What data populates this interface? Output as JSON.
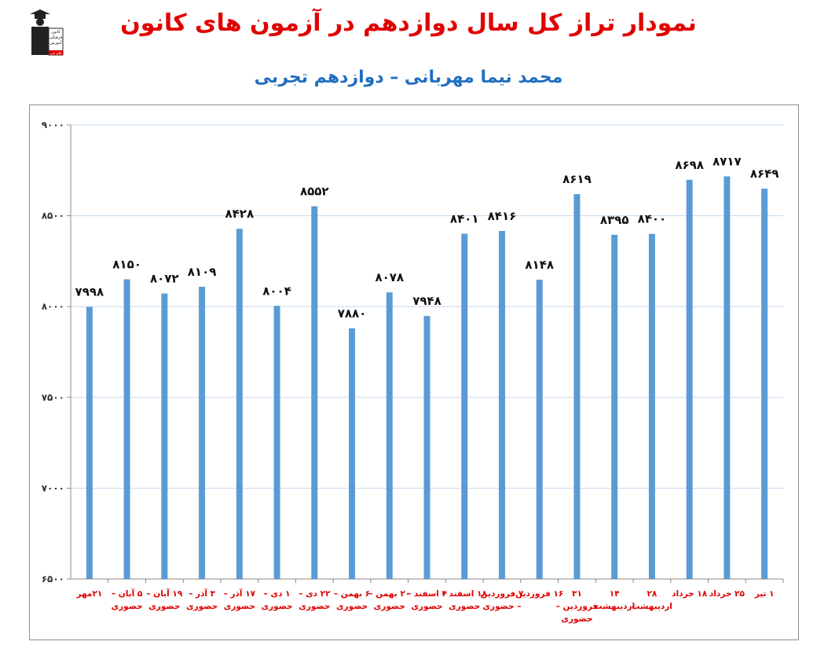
{
  "header": {
    "title": "نمودار تراز کل سال دوازدهم در آزمون های کانون",
    "subtitle": "محمد نیما مهربانی – دوازدهم تجربی",
    "logo_text": [
      "کانون",
      "فرهنگی",
      "آموزش",
      "قلم چی"
    ]
  },
  "colors": {
    "bar": "#5b9bd5",
    "grid": "#c5d9ef",
    "title": "#e00000",
    "subtitle": "#1f6fc0",
    "category_text": "#e00000"
  },
  "chart_data": {
    "type": "bar",
    "title": "نمودار تراز کل سال دوازدهم در آزمون های کانون",
    "subtitle": "محمد نیما مهربانی – دوازدهم تجربی",
    "xlabel": "",
    "ylabel": "",
    "ylim": [
      6500,
      9000
    ],
    "yticks": [
      6500,
      7000,
      7500,
      8000,
      8500,
      9000
    ],
    "ytick_labels": [
      "۶۵۰۰",
      "۷۰۰۰",
      "۷۵۰۰",
      "۸۰۰۰",
      "۸۵۰۰",
      "۹۰۰۰"
    ],
    "grid": true,
    "legend": "none",
    "categories": [
      [
        "۲۱مهر"
      ],
      [
        "۵ آبان –",
        "حضوری"
      ],
      [
        "۱۹ آبان –",
        "حضوری"
      ],
      [
        "۳ آذر –",
        "حضوری"
      ],
      [
        "۱۷ آذر –",
        "حضوری"
      ],
      [
        "۱ دی –",
        "حضوری"
      ],
      [
        "۲۲ دی –",
        "حضوری"
      ],
      [
        "۶ بهمن –",
        "حضوری"
      ],
      [
        "۲۰ بهمن –",
        "حضوری"
      ],
      [
        "۴ اسفند –",
        "حضوری"
      ],
      [
        "۱۸ اسفند –",
        "حضوری"
      ],
      [
        "۷ فروردین",
        "– حضوری"
      ],
      [
        "۱۶ فروردین"
      ],
      [
        "۳۱",
        "فروردین –",
        "حضوری"
      ],
      [
        "۱۴",
        "اردیبهشت"
      ],
      [
        "۲۸",
        "اردیبهشت"
      ],
      [
        "۱۸ خرداد"
      ],
      [
        "۲۵ خرداد"
      ],
      [
        "۱ تیر"
      ]
    ],
    "values": [
      7998,
      8150,
      8072,
      8109,
      8428,
      8004,
      8552,
      7880,
      8078,
      7948,
      8401,
      8416,
      8148,
      8619,
      8395,
      8400,
      8698,
      8717,
      8649
    ],
    "data_labels": [
      "۷۹۹۸",
      "۸۱۵۰",
      "۸۰۷۲",
      "۸۱۰۹",
      "۸۴۲۸",
      "۸۰۰۴",
      "۸۵۵۲",
      "۷۸۸۰",
      "۸۰۷۸",
      "۷۹۴۸",
      "۸۴۰۱",
      "۸۴۱۶",
      "۸۱۴۸",
      "۸۶۱۹",
      "۸۳۹۵",
      "۸۴۰۰",
      "۸۶۹۸",
      "۸۷۱۷",
      "۸۶۴۹"
    ]
  }
}
